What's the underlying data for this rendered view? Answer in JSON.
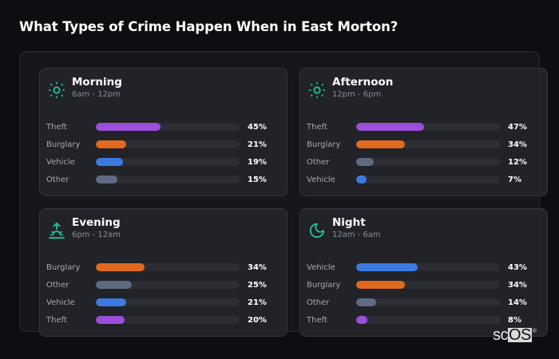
{
  "page": {
    "title": "What Types of Crime Happen When in East Morton?"
  },
  "colors": {
    "accent": "#1fc39a",
    "Theft": "#9b4fd9",
    "Burglary": "#e06a1e",
    "Vehicle": "#3b7be0",
    "Other": "#5f6b80",
    "track": "#2d2d34"
  },
  "panels": [
    {
      "title": "Morning",
      "subtitle": "6am - 12pm",
      "icon": "sun-icon",
      "rows": [
        {
          "label": "Theft",
          "value": 45,
          "display": "45%"
        },
        {
          "label": "Burglary",
          "value": 21,
          "display": "21%"
        },
        {
          "label": "Vehicle",
          "value": 19,
          "display": "19%"
        },
        {
          "label": "Other",
          "value": 15,
          "display": "15%"
        }
      ]
    },
    {
      "title": "Afternoon",
      "subtitle": "12pm - 6pm",
      "icon": "sun-icon",
      "rows": [
        {
          "label": "Theft",
          "value": 47,
          "display": "47%"
        },
        {
          "label": "Burglary",
          "value": 34,
          "display": "34%"
        },
        {
          "label": "Other",
          "value": 12,
          "display": "12%"
        },
        {
          "label": "Vehicle",
          "value": 7,
          "display": "7%"
        }
      ]
    },
    {
      "title": "Evening",
      "subtitle": "6pm - 12am",
      "icon": "sunset-icon",
      "rows": [
        {
          "label": "Burglary",
          "value": 34,
          "display": "34%"
        },
        {
          "label": "Other",
          "value": 25,
          "display": "25%"
        },
        {
          "label": "Vehicle",
          "value": 21,
          "display": "21%"
        },
        {
          "label": "Theft",
          "value": 20,
          "display": "20%"
        }
      ]
    },
    {
      "title": "Night",
      "subtitle": "12am - 6am",
      "icon": "moon-icon",
      "rows": [
        {
          "label": "Vehicle",
          "value": 43,
          "display": "43%"
        },
        {
          "label": "Burglary",
          "value": 34,
          "display": "34%"
        },
        {
          "label": "Other",
          "value": 14,
          "display": "14%"
        },
        {
          "label": "Theft",
          "value": 8,
          "display": "8%"
        }
      ]
    }
  ],
  "watermark": {
    "sc": "sc",
    "os": "OS",
    "reg": "®"
  },
  "chart_data": {
    "type": "bar",
    "orientation": "horizontal",
    "title": "What Types of Crime Happen When in East Morton?",
    "xlabel": "",
    "ylabel": "",
    "xlim": [
      0,
      100
    ],
    "unit": "%",
    "grid": false,
    "legend": null,
    "panels": [
      {
        "title": "Morning",
        "subtitle": "6am - 12pm",
        "categories": [
          "Theft",
          "Burglary",
          "Vehicle",
          "Other"
        ],
        "values": [
          45,
          21,
          19,
          15
        ]
      },
      {
        "title": "Afternoon",
        "subtitle": "12pm - 6pm",
        "categories": [
          "Theft",
          "Burglary",
          "Other",
          "Vehicle"
        ],
        "values": [
          47,
          34,
          12,
          7
        ]
      },
      {
        "title": "Evening",
        "subtitle": "6pm - 12am",
        "categories": [
          "Burglary",
          "Other",
          "Vehicle",
          "Theft"
        ],
        "values": [
          34,
          25,
          21,
          20
        ]
      },
      {
        "title": "Night",
        "subtitle": "12am - 6am",
        "categories": [
          "Vehicle",
          "Burglary",
          "Other",
          "Theft"
        ],
        "values": [
          43,
          34,
          14,
          8
        ]
      }
    ],
    "series_colors": {
      "Theft": "#9b4fd9",
      "Burglary": "#e06a1e",
      "Vehicle": "#3b7be0",
      "Other": "#5f6b80"
    }
  }
}
